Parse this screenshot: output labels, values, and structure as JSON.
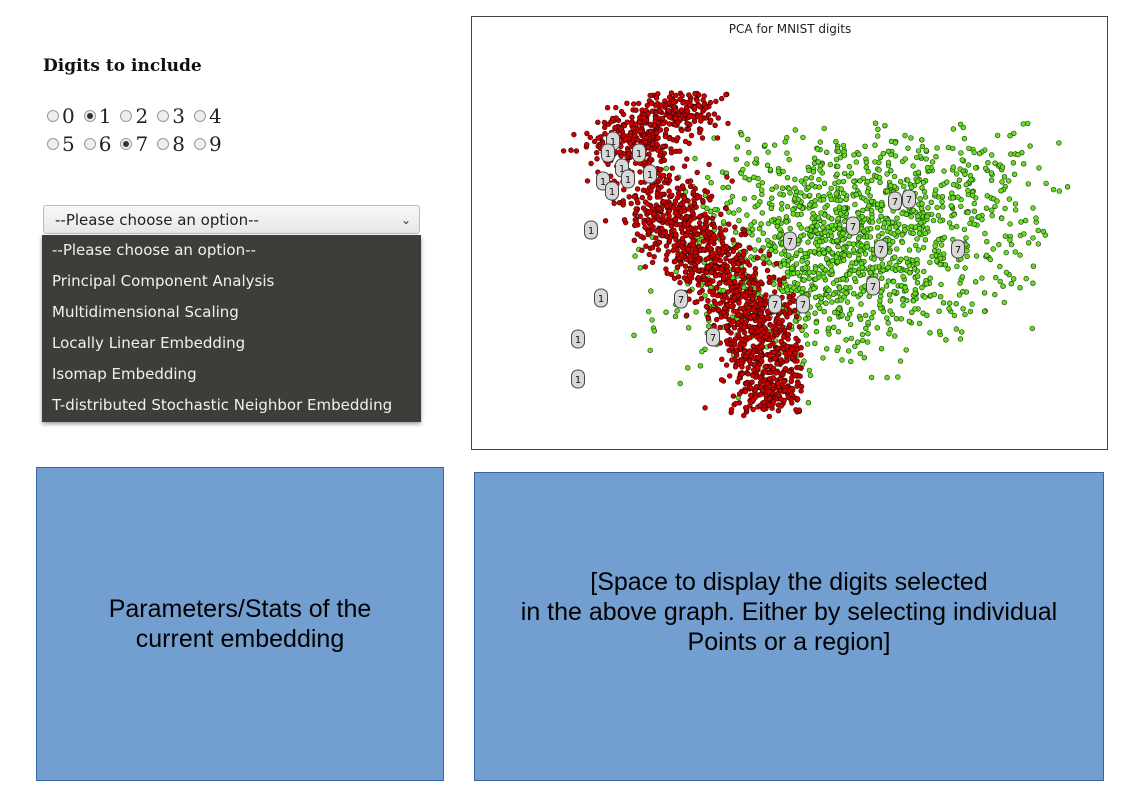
{
  "controls": {
    "heading": "Digits to include",
    "digits": [
      {
        "label": "0",
        "checked": false
      },
      {
        "label": "1",
        "checked": true
      },
      {
        "label": "2",
        "checked": false
      },
      {
        "label": "3",
        "checked": false
      },
      {
        "label": "4",
        "checked": false
      },
      {
        "label": "5",
        "checked": false
      },
      {
        "label": "6",
        "checked": false
      },
      {
        "label": "7",
        "checked": true
      },
      {
        "label": "8",
        "checked": false
      },
      {
        "label": "9",
        "checked": false
      }
    ],
    "embedding_select": {
      "value": "--Please choose an option--",
      "options": [
        "--Please choose an option--",
        "Principal Component Analysis",
        "Multidimensional Scaling",
        "Locally Linear Embedding",
        "Isomap Embedding",
        "T-distributed Stochastic Neighbor Embedding"
      ]
    }
  },
  "chart_data": {
    "type": "scatter",
    "title": "PCA for MNIST digits",
    "xlabel": "",
    "ylabel": "",
    "grid": false,
    "legend": "none",
    "series": [
      {
        "name": "1",
        "color": "#cc0000",
        "marker_label": "1"
      },
      {
        "name": "7",
        "color": "#66dd22",
        "marker_label": "7"
      }
    ]
  },
  "stats_panel": {
    "text": "Parameters/Stats of the\ncurrent embedding"
  },
  "selection_panel": {
    "text": "[Space to display the digits selected\nin the above graph. Either by selecting individual\nPoints or a region]"
  }
}
